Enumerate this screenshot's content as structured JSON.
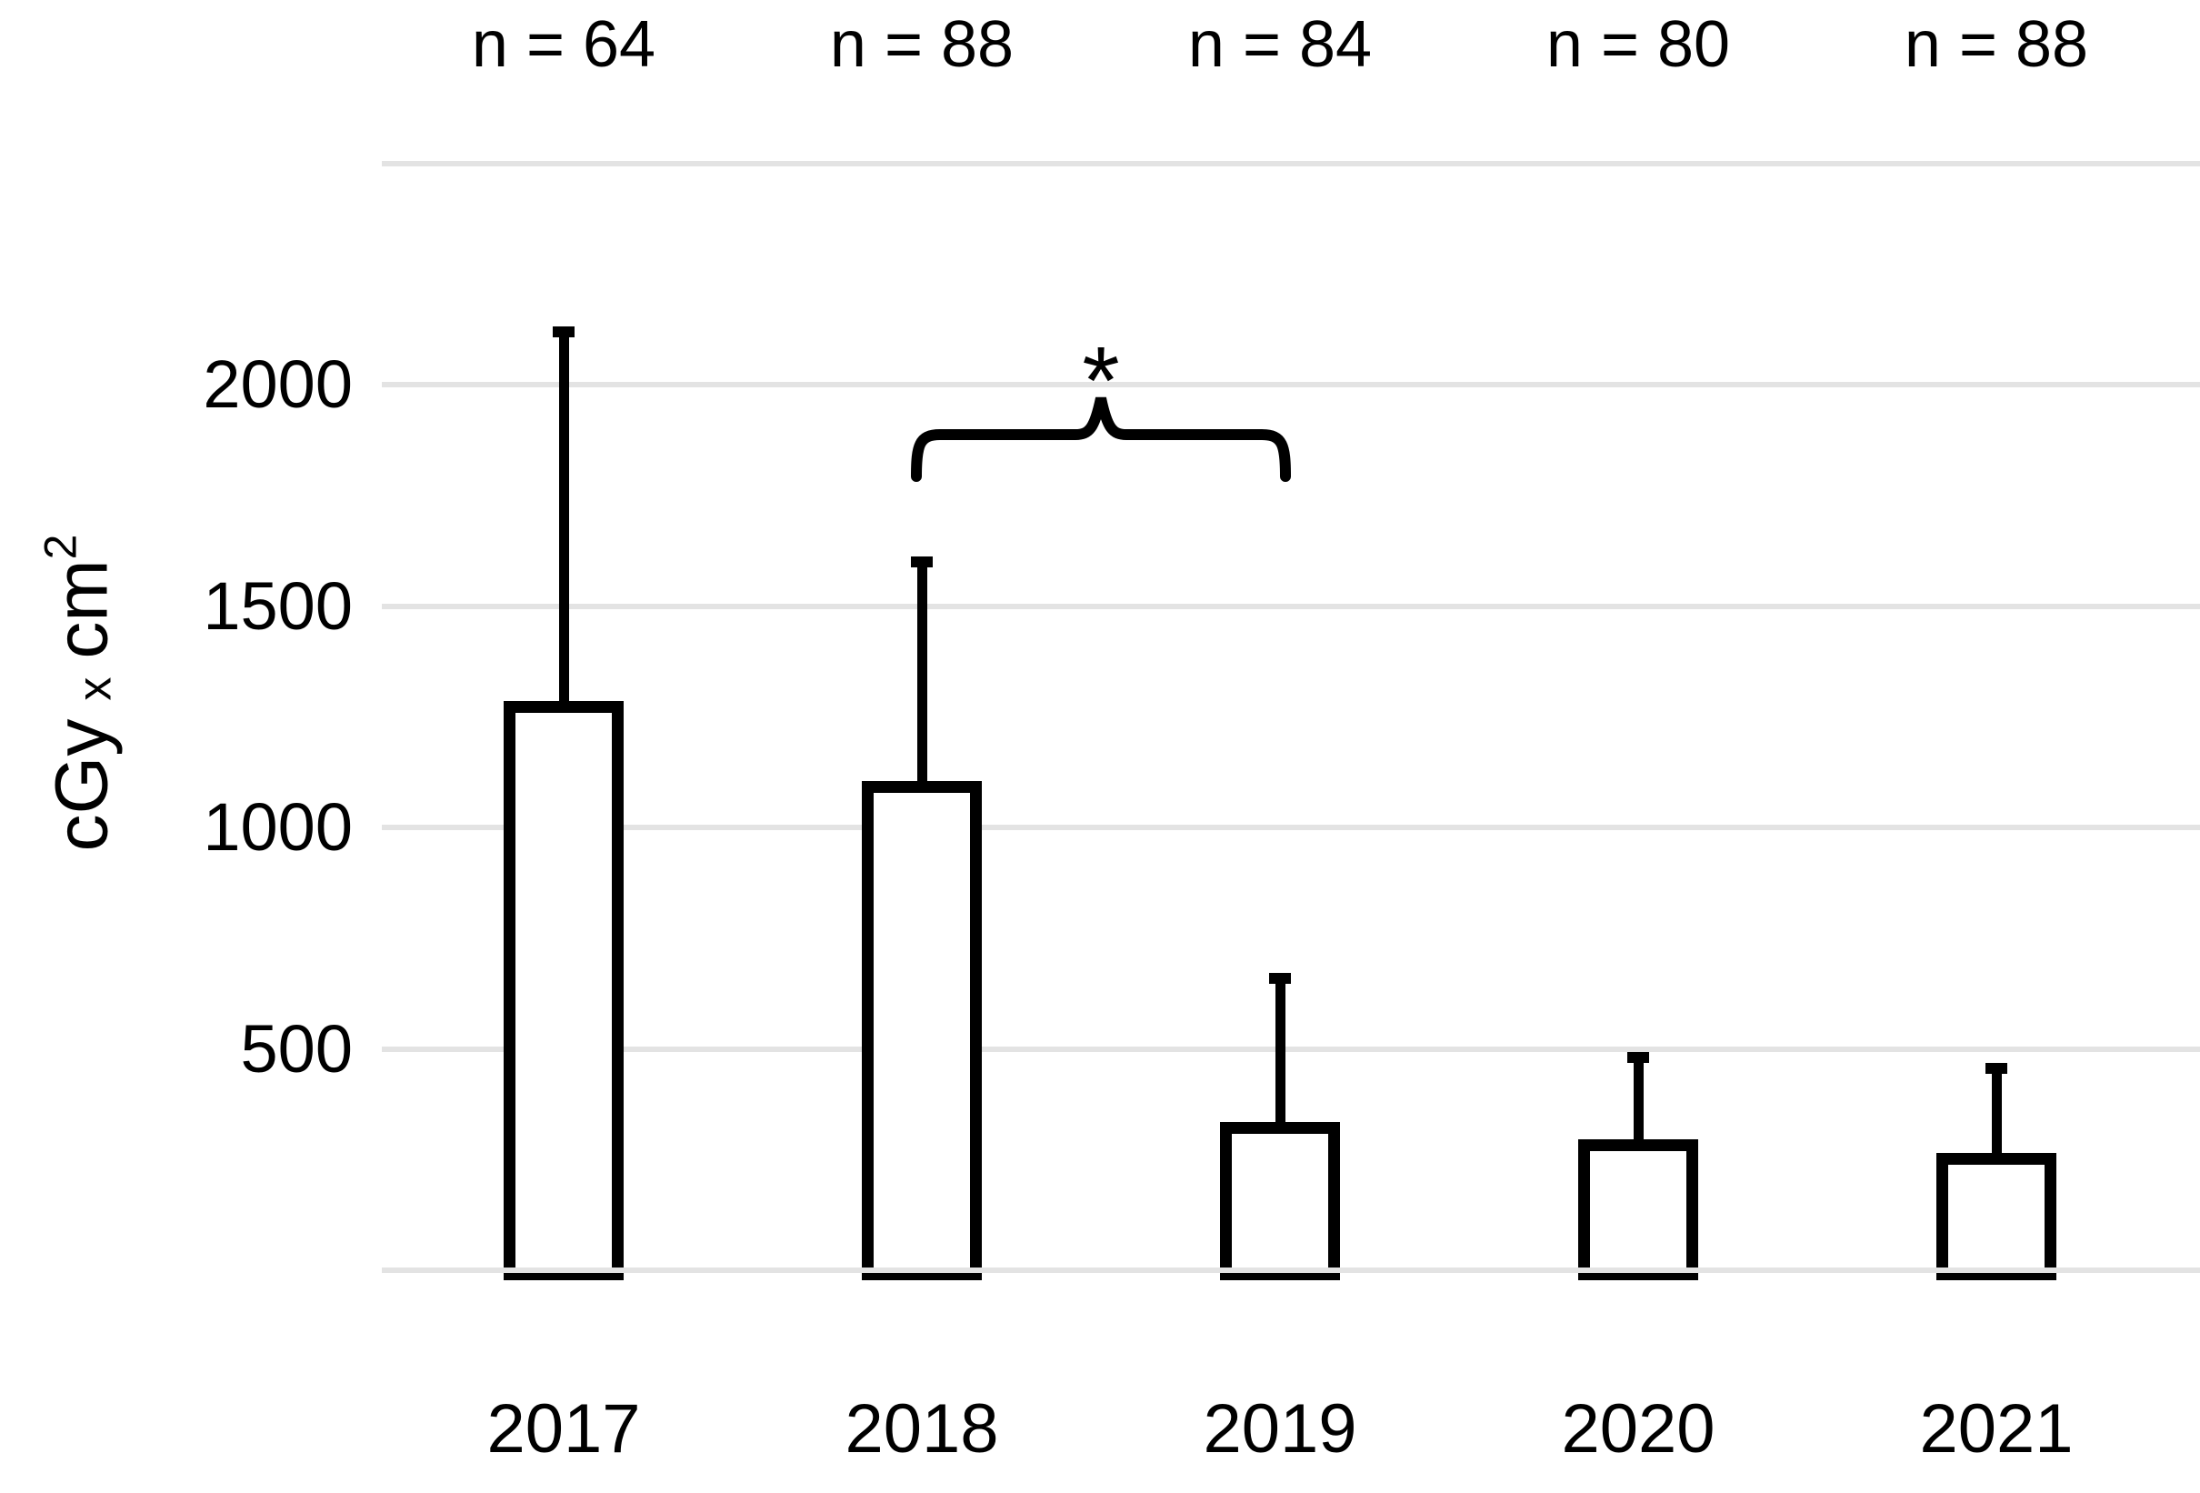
{
  "styles": {
    "background": "#ffffff",
    "text_color": "#000000",
    "gridline_color": "#e3e3e3",
    "bar_fill": "#ffffff",
    "bar_border_color": "#000000",
    "error_bar_color": "#000000"
  },
  "chart_data": {
    "type": "bar",
    "title": "",
    "xlabel": "",
    "ylabel": "cGy x cm2",
    "ylabel_parts": {
      "prefix": "cGy",
      "operator": "x",
      "unit": "cm",
      "exponent": "2"
    },
    "categories": [
      "2017",
      "2018",
      "2019",
      "2020",
      "2021"
    ],
    "values": [
      1285,
      1105,
      335,
      295,
      265
    ],
    "error_upper_values": [
      2120,
      1600,
      660,
      480,
      455
    ],
    "error_sd": [
      835,
      495,
      325,
      185,
      190
    ],
    "n_labels": [
      "n = 64",
      "n = 88",
      "n = 84",
      "n = 80",
      "n = 88"
    ],
    "ylim": [
      0,
      2500
    ],
    "ytick_values": [
      500,
      1000,
      1500,
      2000
    ],
    "ytick_labels": [
      "500",
      "1000",
      "1500",
      "2000"
    ],
    "gridline_values": [
      0,
      500,
      1000,
      1500,
      2000,
      2500
    ],
    "grid": true,
    "legend": false,
    "error_bars": "upper only, with caps",
    "significance_bracket": {
      "symbol": "*",
      "from_category": "2018",
      "to_category": "2019"
    }
  }
}
